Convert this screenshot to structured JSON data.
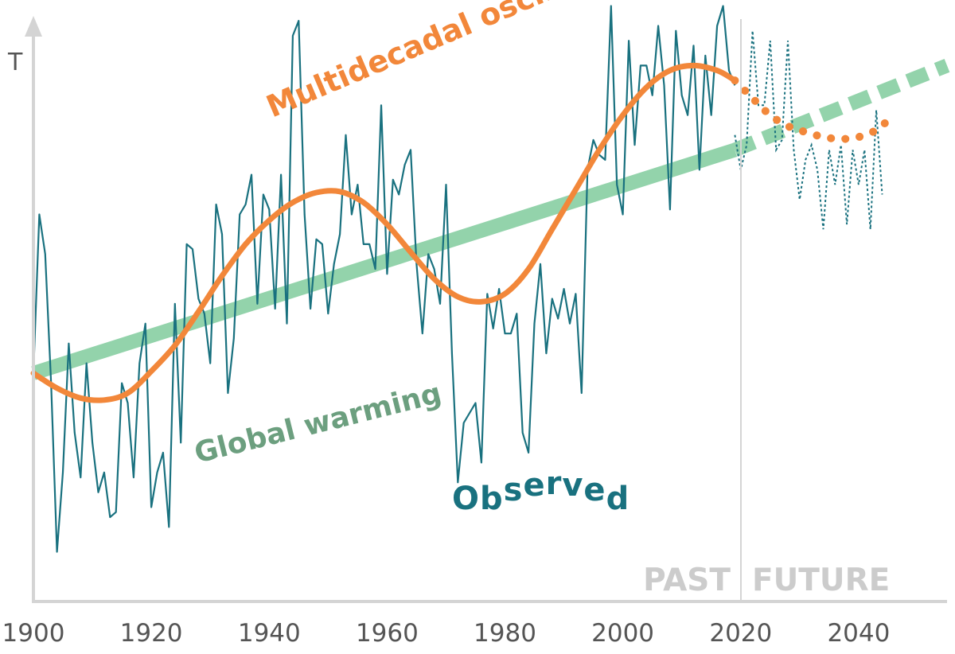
{
  "chart_data": {
    "type": "line",
    "ylabel": "T",
    "xlabel": "",
    "title": "",
    "xlim": [
      1900,
      2055
    ],
    "ylim": [
      -3.3,
      2.6
    ],
    "x_ticks": [
      "1900",
      "1920",
      "1940",
      "1960",
      "1980",
      "2000",
      "2020",
      "2040"
    ],
    "past_label": "PAST",
    "future_label": "FUTURE",
    "divider_year": 2019,
    "annotations": {
      "oscillation": "Multidecadal oscillation",
      "warming": "Global warming",
      "observed": "Observed"
    },
    "colors": {
      "observed": "#19717f",
      "oscillation": "#f2873a",
      "warming": "#93d3ab",
      "warming_label": "#6c9f7f",
      "axis": "#d4d4d4",
      "era_text": "#cccccc"
    },
    "series": [
      {
        "name": "Global warming",
        "x_observed": [
          1900,
          2019
        ],
        "y_observed": [
          -1.0,
          1.25
        ],
        "x_projected": [
          2019,
          2055
        ],
        "y_projected": [
          1.25,
          2.1
        ]
      },
      {
        "name": "Multidecadal oscillation",
        "x_observed": [
          1900,
          1904,
          1908,
          1912,
          1916,
          1920,
          1924,
          1928,
          1932,
          1936,
          1940,
          1944,
          1948,
          1952,
          1956,
          1960,
          1964,
          1968,
          1972,
          1976,
          1980,
          1984,
          1988,
          1992,
          1996,
          2000,
          2004,
          2008,
          2012,
          2016,
          2019
        ],
        "y_observed": [
          -1.0,
          -1.15,
          -1.25,
          -1.27,
          -1.2,
          -0.98,
          -0.72,
          -0.38,
          -0.02,
          0.3,
          0.54,
          0.72,
          0.82,
          0.83,
          0.72,
          0.5,
          0.22,
          -0.05,
          -0.23,
          -0.28,
          -0.2,
          0.05,
          0.45,
          0.85,
          1.25,
          1.6,
          1.88,
          2.05,
          2.1,
          2.05,
          1.95
        ],
        "x_projected": [
          2019,
          2022,
          2025,
          2028,
          2031,
          2034,
          2037,
          2040,
          2043,
          2045
        ],
        "y_projected": [
          1.95,
          1.77,
          1.6,
          1.49,
          1.43,
          1.38,
          1.36,
          1.38,
          1.45,
          1.55
        ]
      },
      {
        "name": "Observed",
        "x_observed": [
          1900,
          1901,
          1902,
          1903,
          1904,
          1905,
          1906,
          1907,
          1908,
          1909,
          1910,
          1911,
          1912,
          1913,
          1914,
          1915,
          1916,
          1917,
          1918,
          1919,
          1920,
          1921,
          1922,
          1923,
          1924,
          1925,
          1926,
          1927,
          1928,
          1929,
          1930,
          1931,
          1932,
          1933,
          1934,
          1935,
          1936,
          1937,
          1938,
          1939,
          1940,
          1941,
          1942,
          1943,
          1944,
          1945,
          1946,
          1947,
          1948,
          1949,
          1950,
          1951,
          1952,
          1953,
          1954,
          1955,
          1956,
          1957,
          1958,
          1959,
          1960,
          1961,
          1962,
          1963,
          1964,
          1965,
          1966,
          1967,
          1968,
          1969,
          1970,
          1971,
          1972,
          1973,
          1974,
          1975,
          1976,
          1977,
          1978,
          1979,
          1980,
          1981,
          1982,
          1983,
          1984,
          1985,
          1986,
          1987,
          1988,
          1989,
          1990,
          1991,
          1992,
          1993,
          1994,
          1995,
          1996,
          1997,
          1998,
          1999,
          2000,
          2001,
          2002,
          2003,
          2004,
          2005,
          2006,
          2007,
          2008,
          2009,
          2010,
          2011,
          2012,
          2013,
          2014,
          2015,
          2016,
          2017,
          2018,
          2019
        ],
        "y_observed": [
          -1.0,
          0.6,
          0.2,
          -1.1,
          -2.8,
          -2.0,
          -0.7,
          -1.6,
          -2.05,
          -0.9,
          -1.7,
          -2.2,
          -2.0,
          -2.45,
          -2.4,
          -1.1,
          -1.3,
          -2.05,
          -0.9,
          -0.5,
          -2.35,
          -2.0,
          -1.8,
          -2.55,
          -0.3,
          -1.7,
          0.3,
          0.25,
          -0.25,
          -0.4,
          -0.9,
          0.7,
          0.4,
          -1.2,
          -0.65,
          0.6,
          0.7,
          1.0,
          -0.3,
          0.8,
          0.65,
          -0.35,
          1.0,
          -0.5,
          2.4,
          2.55,
          0.6,
          -0.35,
          0.35,
          0.3,
          -0.4,
          0.1,
          0.4,
          1.4,
          0.6,
          0.9,
          0.3,
          0.3,
          0.05,
          1.7,
          0.0,
          0.95,
          0.8,
          1.1,
          1.25,
          0.1,
          -0.6,
          0.2,
          0.05,
          -0.3,
          0.9,
          -0.8,
          -2.1,
          -1.5,
          -1.4,
          -1.3,
          -1.9,
          -0.2,
          -0.55,
          -0.15,
          -0.6,
          -0.6,
          -0.4,
          -1.6,
          -1.8,
          -0.5,
          0.1,
          -0.8,
          -0.25,
          -0.45,
          -0.15,
          -0.5,
          -0.2,
          -1.2,
          1.05,
          1.35,
          1.2,
          1.15,
          2.7,
          0.9,
          0.6,
          2.35,
          1.3,
          2.1,
          2.1,
          1.8,
          2.5,
          1.9,
          0.65,
          2.45,
          1.8,
          1.6,
          2.3,
          1.05,
          2.2,
          1.6,
          2.5,
          2.7,
          2.05,
          1.9
        ],
        "x_projected": [
          2019,
          2020,
          2021,
          2022,
          2023,
          2024,
          2025,
          2026,
          2027,
          2028,
          2029,
          2030,
          2031,
          2032,
          2033,
          2034,
          2035,
          2036,
          2037,
          2038,
          2039,
          2040,
          2041,
          2042,
          2043,
          2044
        ],
        "y_projected": [
          1.4,
          1.05,
          1.3,
          2.45,
          1.7,
          1.7,
          2.35,
          1.25,
          1.35,
          2.35,
          1.25,
          0.75,
          1.15,
          1.3,
          1.05,
          0.45,
          1.25,
          0.9,
          1.3,
          0.5,
          1.25,
          0.9,
          1.25,
          0.45,
          1.65,
          0.8
        ]
      }
    ]
  }
}
